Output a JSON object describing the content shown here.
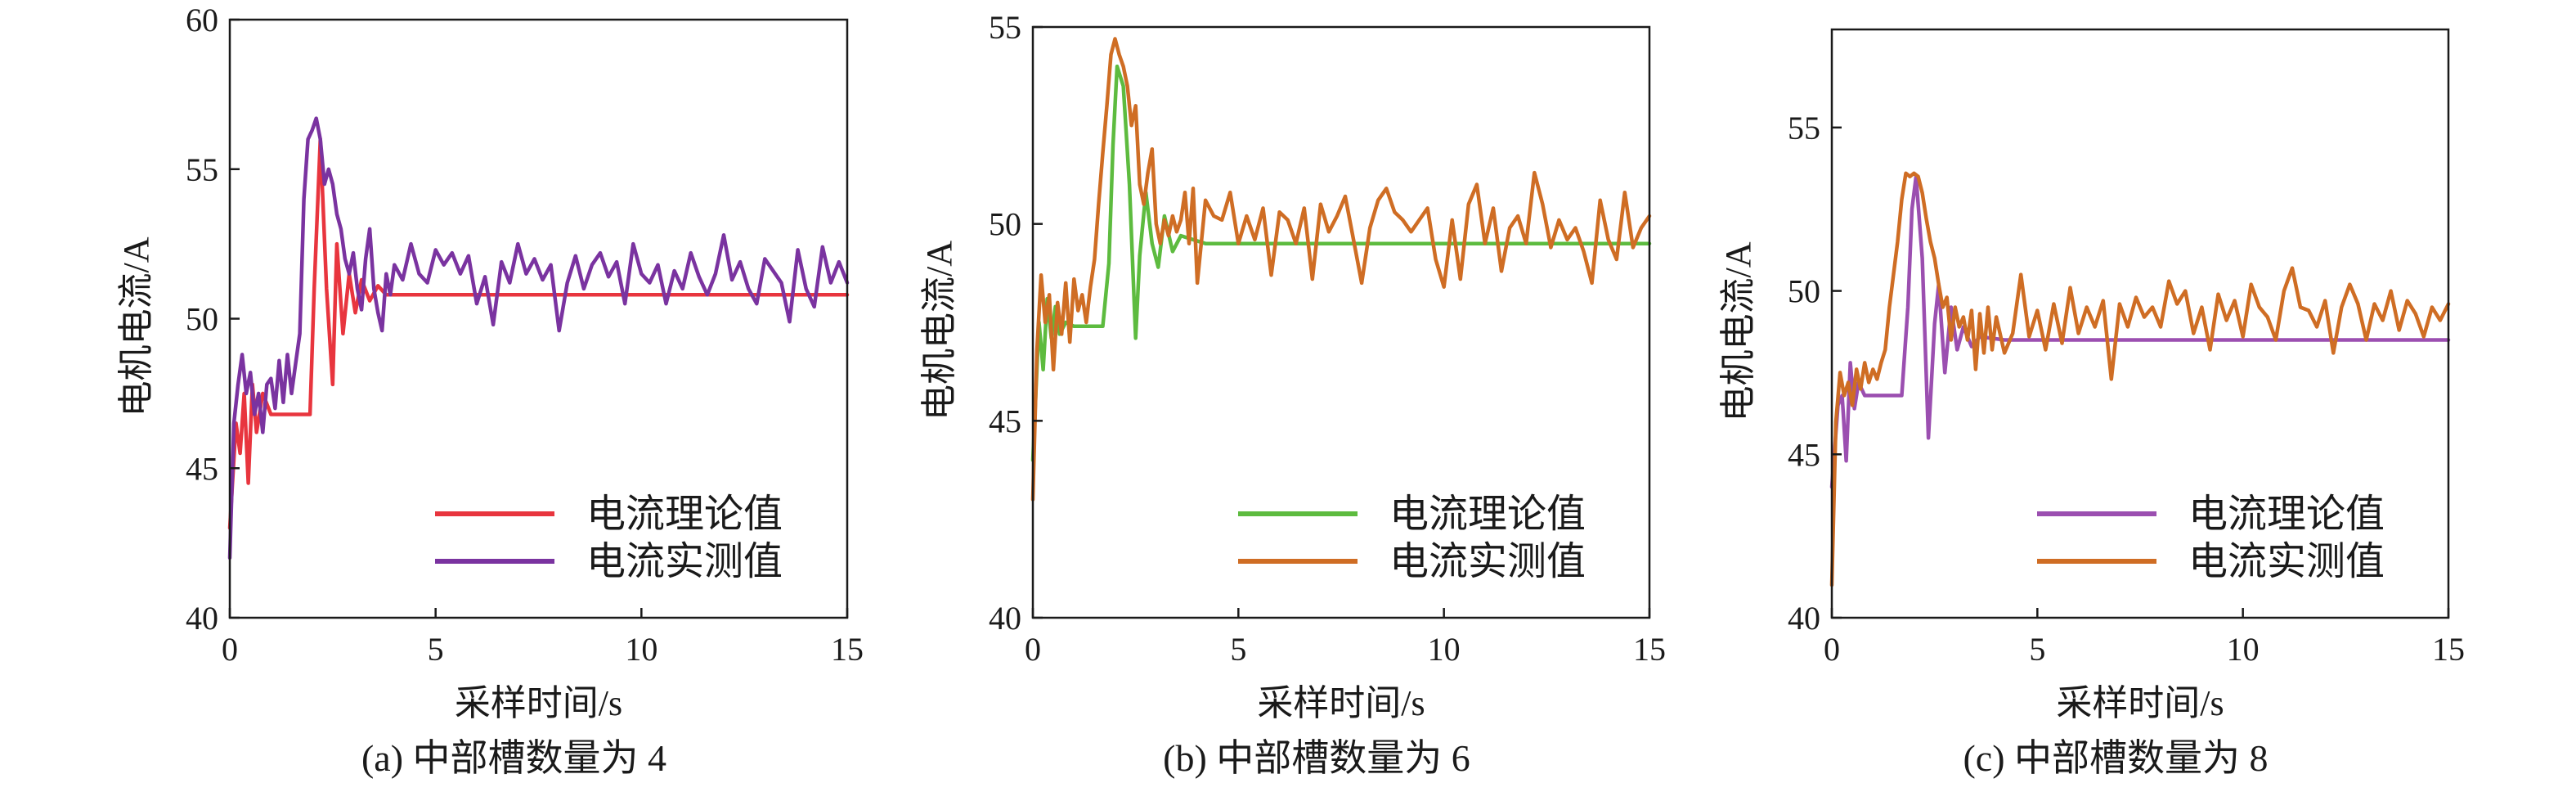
{
  "chart_data": [
    {
      "type": "line",
      "caption": "(a) 中部槽数量为 4",
      "xlabel": "采样时间/s",
      "ylabel": "电机电流/A",
      "xlim": [
        0,
        15
      ],
      "ylim": [
        40,
        60
      ],
      "xticks": [
        "0",
        "5",
        "10",
        "15"
      ],
      "yticks": [
        "40",
        "45",
        "50",
        "55",
        "60"
      ],
      "legend_position": "lower-right",
      "series": [
        {
          "name": "电流理论值",
          "color": "#e8353e",
          "x": [
            0,
            0.15,
            0.25,
            0.35,
            0.45,
            0.55,
            0.65,
            0.8,
            1.0,
            1.5,
            1.95,
            2.05,
            2.2,
            2.35,
            2.5,
            2.6,
            2.75,
            2.9,
            3.05,
            3.2,
            3.4,
            3.6,
            3.8,
            4.2,
            5,
            15
          ],
          "y": [
            43,
            46.5,
            45.5,
            47.5,
            44.5,
            47.8,
            46.2,
            47.5,
            46.8,
            46.8,
            46.8,
            51,
            56,
            51,
            47.8,
            52.5,
            49.5,
            51.5,
            50.2,
            51.3,
            50.6,
            51.1,
            50.8,
            50.8,
            50.8,
            50.8
          ]
        },
        {
          "name": "电流实测值",
          "color": "#7a33a0",
          "x": [
            0,
            0.1,
            0.2,
            0.3,
            0.4,
            0.5,
            0.6,
            0.7,
            0.8,
            0.9,
            1.0,
            1.1,
            1.2,
            1.3,
            1.4,
            1.5,
            1.6,
            1.7,
            1.8,
            1.9,
            2.0,
            2.1,
            2.2,
            2.3,
            2.4,
            2.5,
            2.6,
            2.7,
            2.8,
            2.9,
            3.0,
            3.1,
            3.2,
            3.3,
            3.4,
            3.5,
            3.6,
            3.7,
            3.8,
            3.9,
            4.0,
            4.2,
            4.4,
            4.6,
            4.8,
            5.0,
            5.2,
            5.4,
            5.6,
            5.8,
            6.0,
            6.2,
            6.4,
            6.6,
            6.8,
            7.0,
            7.2,
            7.4,
            7.6,
            7.8,
            8.0,
            8.2,
            8.4,
            8.6,
            8.8,
            9.0,
            9.2,
            9.4,
            9.6,
            9.8,
            10.0,
            10.2,
            10.4,
            10.6,
            10.8,
            11.0,
            11.2,
            11.4,
            11.6,
            11.8,
            12.0,
            12.2,
            12.4,
            12.6,
            12.8,
            13.0,
            13.2,
            13.4,
            13.6,
            13.8,
            14.0,
            14.2,
            14.4,
            14.6,
            14.8,
            15.0
          ],
          "y": [
            42,
            46.5,
            47.8,
            48.8,
            47.5,
            48.2,
            46.8,
            47.5,
            46.2,
            47.8,
            48,
            47,
            48.6,
            47.2,
            48.8,
            47.5,
            48.5,
            49.5,
            54,
            56,
            56.3,
            56.7,
            56,
            54.5,
            55,
            54.5,
            53.5,
            53,
            52,
            51.5,
            52.2,
            51,
            50.3,
            52,
            53,
            51,
            50.2,
            49.6,
            51.5,
            50.8,
            51.8,
            51.3,
            52.5,
            51.5,
            51.2,
            52.3,
            51.8,
            52.2,
            51.5,
            52.1,
            50.5,
            51.4,
            49.8,
            51.9,
            51.2,
            52.5,
            51.5,
            52,
            51.3,
            51.8,
            49.6,
            51.2,
            52.1,
            51,
            51.8,
            52.2,
            51.4,
            51.9,
            50.5,
            52.5,
            51.5,
            51.2,
            51.8,
            50.5,
            51.6,
            51,
            52.2,
            51.4,
            50.8,
            51.5,
            52.8,
            51.3,
            51.9,
            51,
            50.5,
            52,
            51.6,
            51.2,
            49.9,
            52.3,
            51,
            50.4,
            52.4,
            51.2,
            51.9,
            51.2
          ]
        }
      ]
    },
    {
      "type": "line",
      "caption": "(b) 中部槽数量为 6",
      "xlabel": "采样时间/s",
      "ylabel": "电机电流/A",
      "xlim": [
        0,
        15
      ],
      "ylim": [
        40,
        55
      ],
      "xticks": [
        "0",
        "5",
        "10",
        "15"
      ],
      "yticks": [
        "40",
        "45",
        "50",
        "55"
      ],
      "legend_position": "lower-right",
      "series": [
        {
          "name": "电流理论值",
          "color": "#5dbb3f",
          "x": [
            0,
            0.15,
            0.25,
            0.35,
            0.45,
            0.55,
            0.65,
            0.8,
            1.0,
            1.5,
            1.7,
            1.85,
            1.95,
            2.05,
            2.2,
            2.35,
            2.5,
            2.6,
            2.75,
            2.9,
            3.05,
            3.2,
            3.4,
            3.6,
            4.2,
            5,
            15
          ],
          "y": [
            44,
            47.5,
            46.3,
            48.1,
            47.1,
            47.9,
            47.2,
            47.5,
            47.4,
            47.4,
            47.4,
            49,
            52,
            54,
            53.5,
            51,
            47.1,
            49.2,
            50.8,
            49.5,
            48.9,
            50.2,
            49.3,
            49.7,
            49.5,
            49.5,
            49.5
          ]
        },
        {
          "name": "电流实测值",
          "color": "#cf6d24",
          "x": [
            0,
            0.1,
            0.2,
            0.3,
            0.4,
            0.5,
            0.6,
            0.7,
            0.8,
            0.9,
            1.0,
            1.1,
            1.2,
            1.3,
            1.4,
            1.5,
            1.6,
            1.7,
            1.8,
            1.9,
            2.0,
            2.1,
            2.2,
            2.3,
            2.4,
            2.5,
            2.6,
            2.7,
            2.8,
            2.9,
            3.0,
            3.1,
            3.2,
            3.3,
            3.4,
            3.5,
            3.6,
            3.7,
            3.8,
            3.9,
            4.0,
            4.2,
            4.4,
            4.6,
            4.8,
            5.0,
            5.2,
            5.4,
            5.6,
            5.8,
            6.0,
            6.2,
            6.4,
            6.6,
            6.8,
            7.0,
            7.2,
            7.4,
            7.6,
            7.8,
            8.0,
            8.2,
            8.4,
            8.6,
            8.8,
            9.0,
            9.2,
            9.4,
            9.6,
            9.8,
            10.0,
            10.2,
            10.4,
            10.6,
            10.8,
            11.0,
            11.2,
            11.4,
            11.6,
            11.8,
            12.0,
            12.2,
            12.4,
            12.6,
            12.8,
            13.0,
            13.2,
            13.4,
            13.6,
            13.8,
            14.0,
            14.2,
            14.4,
            14.6,
            14.8,
            15.0
          ],
          "y": [
            43,
            46.8,
            48.7,
            47.5,
            48.2,
            46.3,
            48,
            47.2,
            48.5,
            47,
            48.6,
            47.8,
            48.2,
            47.5,
            48.4,
            49.1,
            50.5,
            51.8,
            53,
            54.3,
            54.7,
            54.3,
            54,
            53.5,
            52.5,
            53,
            51,
            50.5,
            51.3,
            51.9,
            50,
            49.5,
            50.1,
            49.7,
            50.2,
            49.8,
            50.1,
            50.8,
            49.5,
            50.9,
            48.5,
            50.6,
            50.2,
            50.1,
            50.8,
            49.5,
            50.2,
            49.6,
            50.4,
            48.7,
            50.3,
            50.1,
            49.5,
            50.4,
            48.6,
            50.5,
            49.8,
            50.2,
            50.7,
            49.6,
            48.5,
            49.9,
            50.6,
            50.9,
            50.3,
            50.1,
            49.8,
            50.1,
            50.4,
            49.1,
            48.4,
            50.1,
            48.6,
            50.5,
            51,
            49.5,
            50.4,
            48.8,
            49.9,
            50.2,
            49.5,
            51.3,
            50.5,
            49.4,
            50.1,
            49.6,
            49.9,
            49.3,
            48.5,
            50.6,
            49.6,
            49.1,
            50.8,
            49.4,
            49.9,
            50.2
          ]
        }
      ]
    },
    {
      "type": "line",
      "caption": "(c) 中部槽数量为 8",
      "xlabel": "采样时间/s",
      "ylabel": "电机电流/A",
      "xlim": [
        0,
        15
      ],
      "ylim": [
        40,
        58
      ],
      "xticks": [
        "0",
        "5",
        "10",
        "15"
      ],
      "yticks": [
        "40",
        "45",
        "50",
        "55"
      ],
      "legend_position": "lower-right",
      "series": [
        {
          "name": "电流理论值",
          "color": "#9b4fb0",
          "x": [
            0,
            0.15,
            0.25,
            0.35,
            0.45,
            0.55,
            0.65,
            0.8,
            1.0,
            1.5,
            1.7,
            1.85,
            1.95,
            2.05,
            2.2,
            2.35,
            2.5,
            2.6,
            2.75,
            2.9,
            3.05,
            3.2,
            3.4,
            3.6,
            4.2,
            5,
            15
          ],
          "y": [
            44,
            46.5,
            46.8,
            44.8,
            47.8,
            46.4,
            47.2,
            46.8,
            46.8,
            46.8,
            46.8,
            49.5,
            52.5,
            53.5,
            51,
            45.5,
            49,
            50.2,
            47.5,
            49.5,
            48.2,
            48.9,
            48.3,
            48.6,
            48.5,
            48.5,
            48.5
          ]
        },
        {
          "name": "电流实测值",
          "color": "#cf6d24",
          "x": [
            0,
            0.1,
            0.2,
            0.3,
            0.4,
            0.5,
            0.6,
            0.7,
            0.8,
            0.9,
            1.0,
            1.1,
            1.2,
            1.3,
            1.4,
            1.5,
            1.6,
            1.7,
            1.8,
            1.9,
            2.0,
            2.1,
            2.2,
            2.3,
            2.4,
            2.5,
            2.6,
            2.7,
            2.8,
            2.9,
            3.0,
            3.1,
            3.2,
            3.3,
            3.4,
            3.5,
            3.6,
            3.7,
            3.8,
            3.9,
            4.0,
            4.2,
            4.4,
            4.6,
            4.8,
            5.0,
            5.2,
            5.4,
            5.6,
            5.8,
            6.0,
            6.2,
            6.4,
            6.6,
            6.8,
            7.0,
            7.2,
            7.4,
            7.6,
            7.8,
            8.0,
            8.2,
            8.4,
            8.6,
            8.8,
            9.0,
            9.2,
            9.4,
            9.6,
            9.8,
            10.0,
            10.2,
            10.4,
            10.6,
            10.8,
            11.0,
            11.2,
            11.4,
            11.6,
            11.8,
            12.0,
            12.2,
            12.4,
            12.6,
            12.8,
            13.0,
            13.2,
            13.4,
            13.6,
            13.8,
            14.0,
            14.2,
            14.4,
            14.6,
            14.8,
            15.0
          ],
          "y": [
            41,
            46,
            47.5,
            46.8,
            47.2,
            46.5,
            47.6,
            47,
            47.8,
            47.2,
            47.6,
            47.3,
            47.8,
            48.2,
            49.5,
            50.5,
            51.5,
            52.8,
            53.6,
            53.5,
            53.6,
            53.5,
            53,
            52.2,
            51.5,
            51,
            50.2,
            49.5,
            49.8,
            48.5,
            49.5,
            48.9,
            49.2,
            48.5,
            49.4,
            47.6,
            49.3,
            48.1,
            49.5,
            48.2,
            49.2,
            48.1,
            48.7,
            50.5,
            48.6,
            49.4,
            48.2,
            49.6,
            48.4,
            50.1,
            48.7,
            49.5,
            48.9,
            49.7,
            47.3,
            49.6,
            48.9,
            49.8,
            49.2,
            49.5,
            48.9,
            50.3,
            49.6,
            50,
            48.7,
            49.5,
            48.2,
            49.9,
            49.1,
            49.7,
            48.6,
            50.2,
            49.5,
            49.2,
            48.5,
            50,
            50.7,
            49.5,
            49.4,
            48.9,
            49.7,
            48.1,
            49.5,
            50.2,
            49.6,
            48.5,
            49.6,
            49.1,
            50,
            48.8,
            49.7,
            49.3,
            48.6,
            49.5,
            49.1,
            49.6
          ]
        }
      ]
    }
  ]
}
